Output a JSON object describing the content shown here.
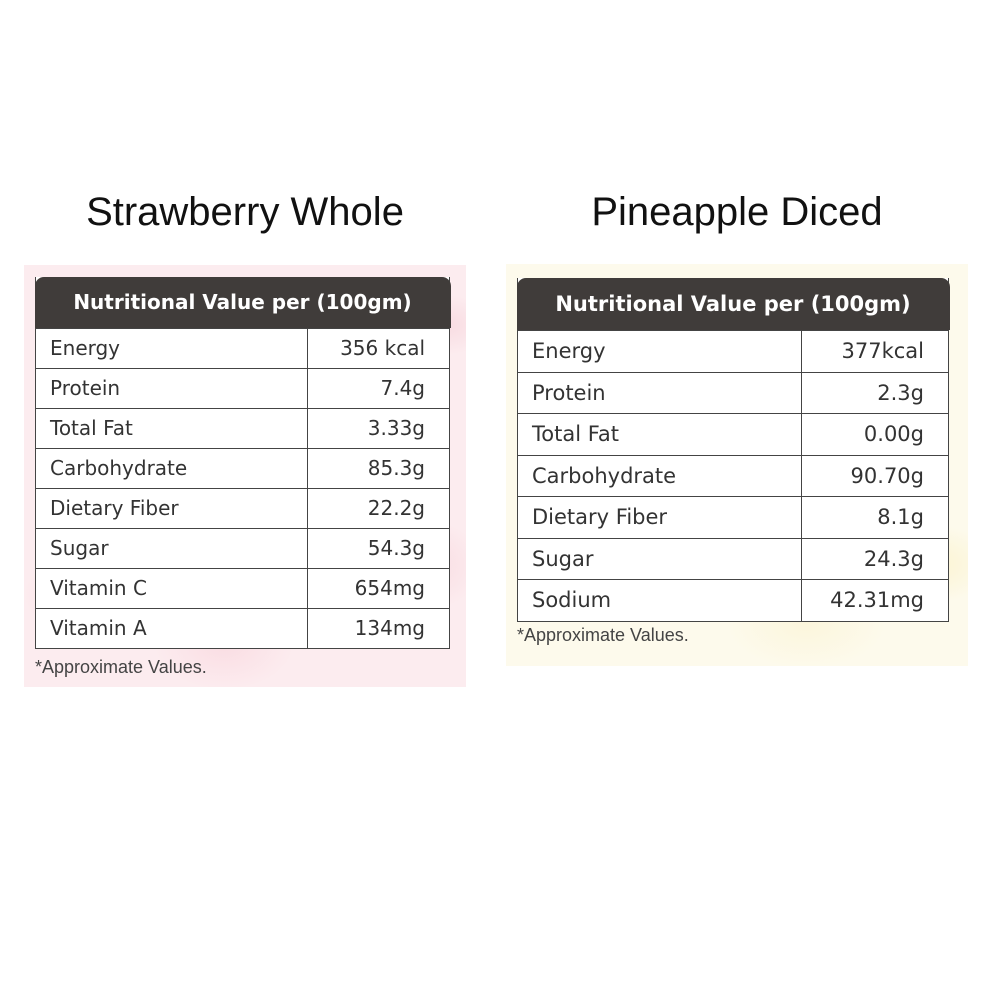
{
  "products": [
    {
      "title": "Strawberry Whole",
      "table_header": "Nutritional Value per (100gm)",
      "rows": [
        {
          "name": "Energy",
          "value": "356 kcal"
        },
        {
          "name": "Protein",
          "value": "7.4g"
        },
        {
          "name": "Total Fat",
          "value": "3.33g"
        },
        {
          "name": "Carbohydrate",
          "value": "85.3g"
        },
        {
          "name": "Dietary Fiber",
          "value": "22.2g"
        },
        {
          "name": "Sugar",
          "value": "54.3g"
        },
        {
          "name": "Vitamin C",
          "value": "654mg"
        },
        {
          "name": "Vitamin A",
          "value": "134mg"
        }
      ],
      "footnote": "*Approximate Values."
    },
    {
      "title": "Pineapple Diced",
      "table_header": "Nutritional Value per (100gm)",
      "rows": [
        {
          "name": "Energy",
          "value": "377kcal"
        },
        {
          "name": "Protein",
          "value": "2.3g"
        },
        {
          "name": "Total Fat",
          "value": "0.00g"
        },
        {
          "name": "Carbohydrate",
          "value": "90.70g"
        },
        {
          "name": "Dietary Fiber",
          "value": "8.1g"
        },
        {
          "name": "Sugar",
          "value": "24.3g"
        },
        {
          "name": "Sodium",
          "value": "42.31mg"
        }
      ],
      "footnote": "*Approximate Values."
    }
  ],
  "colors": {
    "header_bg": "#403c3a",
    "strawberry_panel_bg": "#fcecef",
    "pineapple_panel_bg": "#fdfaec"
  }
}
